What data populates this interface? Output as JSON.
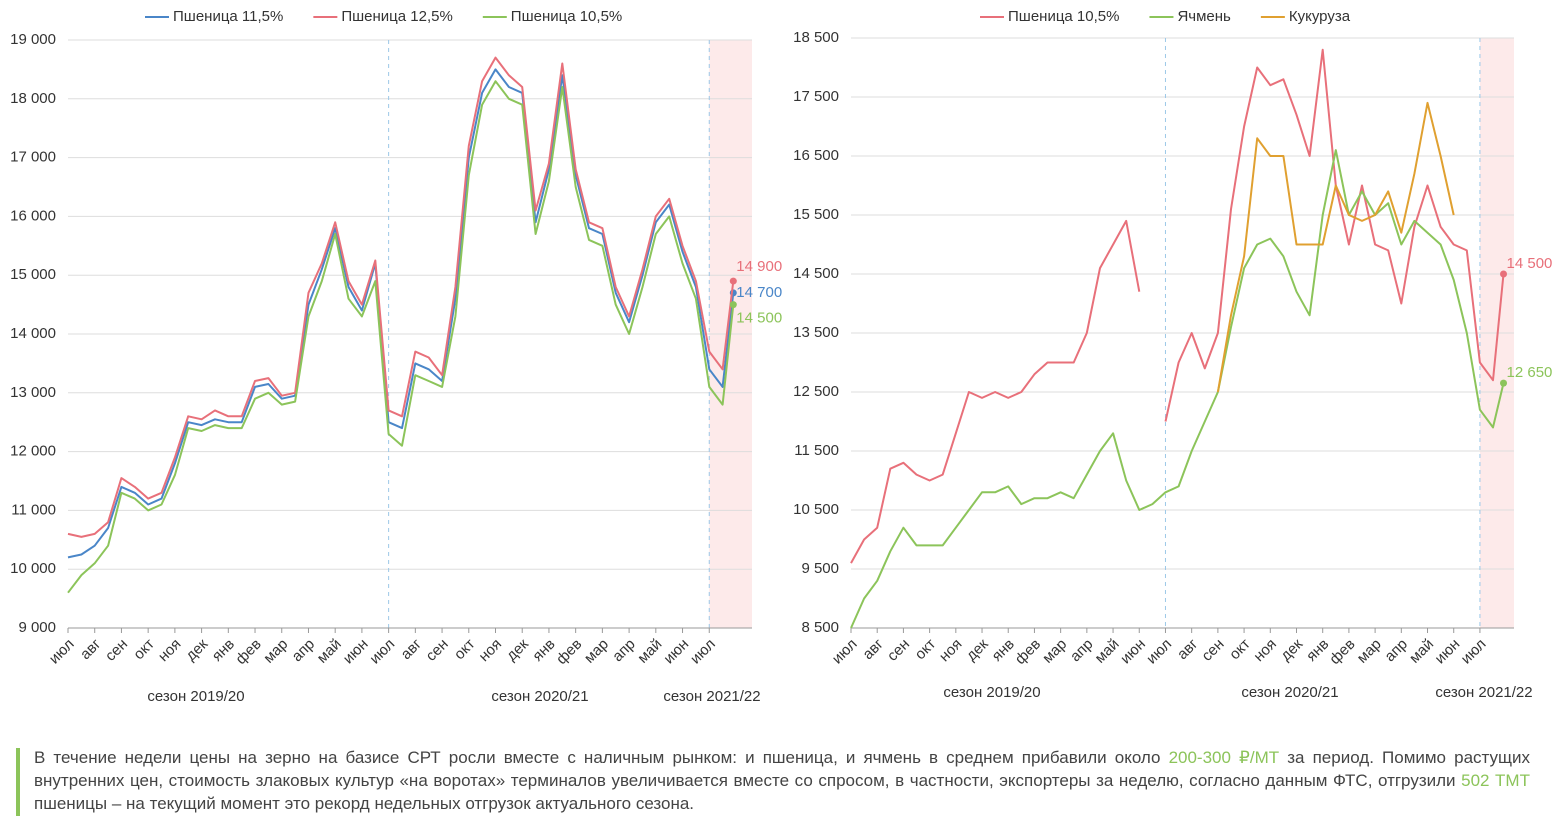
{
  "chart_data": [
    {
      "type": "line",
      "legend": "top",
      "x": [
        0,
        0.5,
        1,
        1.5,
        2,
        2.5,
        3,
        3.5,
        4,
        4.5,
        5,
        5.5,
        6,
        6.5,
        7,
        7.5,
        8,
        8.5,
        9,
        9.5,
        10,
        10.5,
        11,
        11.5,
        12,
        12.5,
        13,
        13.5,
        14,
        14.5,
        15,
        15.5,
        16,
        16.5,
        17,
        17.5,
        18,
        18.5,
        19,
        19.5,
        20,
        20.5,
        21,
        21.5,
        22,
        22.5,
        23,
        23.5,
        24,
        24.5,
        24.9
      ],
      "series": [
        {
          "name": "Пшеница 11,5%",
          "color": "#4a86c8",
          "end_label": "14 700",
          "values": [
            10200,
            10250,
            10400,
            10700,
            11400,
            11300,
            11100,
            11200,
            11800,
            12500,
            12450,
            12550,
            12500,
            12500,
            13100,
            13150,
            12900,
            12950,
            14500,
            15100,
            15800,
            14800,
            14400,
            15200,
            12500,
            12400,
            13500,
            13400,
            13200,
            14600,
            17000,
            18100,
            18500,
            18200,
            18100,
            15900,
            16800,
            18400,
            16700,
            15800,
            15700,
            14700,
            14200,
            15000,
            15900,
            16200,
            15400,
            14800,
            13400,
            13100,
            14700
          ]
        },
        {
          "name": "Пшеница 12,5%",
          "color": "#e8707a",
          "end_label": "14 900",
          "values": [
            10600,
            10550,
            10600,
            10800,
            11550,
            11400,
            11200,
            11300,
            11900,
            12600,
            12550,
            12700,
            12600,
            12600,
            13200,
            13250,
            12950,
            13000,
            14700,
            15200,
            15900,
            14900,
            14500,
            15250,
            12700,
            12600,
            13700,
            13600,
            13300,
            14800,
            17200,
            18300,
            18700,
            18400,
            18200,
            16100,
            16900,
            18600,
            16800,
            15900,
            15800,
            14800,
            14300,
            15100,
            16000,
            16300,
            15500,
            14900,
            13700,
            13400,
            14900
          ]
        },
        {
          "name": "Пшеница 10,5%",
          "color": "#8cc45a",
          "end_label": "14 500",
          "values": [
            9600,
            9900,
            10100,
            10400,
            11300,
            11200,
            11000,
            11100,
            11600,
            12400,
            12350,
            12450,
            12400,
            12400,
            12900,
            13000,
            12800,
            12850,
            14300,
            14900,
            15700,
            14600,
            14300,
            14900,
            12300,
            12100,
            13300,
            13200,
            13100,
            14300,
            16700,
            17900,
            18300,
            18000,
            17900,
            15700,
            16600,
            18200,
            16500,
            15600,
            15500,
            14500,
            14000,
            14800,
            15700,
            16000,
            15200,
            14600,
            13100,
            12800,
            14500
          ]
        }
      ],
      "xlim": [
        0,
        25.6
      ],
      "xticks": [
        {
          "value": 0,
          "label": "июл"
        },
        {
          "value": 1,
          "label": "авг"
        },
        {
          "value": 2,
          "label": "сен"
        },
        {
          "value": 3,
          "label": "окт"
        },
        {
          "value": 4,
          "label": "ноя"
        },
        {
          "value": 5,
          "label": "дек"
        },
        {
          "value": 6,
          "label": "янв"
        },
        {
          "value": 7,
          "label": "фев"
        },
        {
          "value": 8,
          "label": "мар"
        },
        {
          "value": 9,
          "label": "апр"
        },
        {
          "value": 10,
          "label": "май"
        },
        {
          "value": 11,
          "label": "июн"
        },
        {
          "value": 12,
          "label": "июл"
        },
        {
          "value": 13,
          "label": "авг"
        },
        {
          "value": 14,
          "label": "сен"
        },
        {
          "value": 15,
          "label": "окт"
        },
        {
          "value": 16,
          "label": "ноя"
        },
        {
          "value": 17,
          "label": "дек"
        },
        {
          "value": 18,
          "label": "янв"
        },
        {
          "value": 19,
          "label": "фев"
        },
        {
          "value": 20,
          "label": "мар"
        },
        {
          "value": 21,
          "label": "апр"
        },
        {
          "value": 22,
          "label": "май"
        },
        {
          "value": 23,
          "label": "июн"
        },
        {
          "value": 24,
          "label": "июл"
        }
      ],
      "ylim": [
        9000,
        19000
      ],
      "yticks": [
        {
          "value": 9000,
          "label": "9 000"
        },
        {
          "value": 10000,
          "label": "10 000"
        },
        {
          "value": 11000,
          "label": "11 000"
        },
        {
          "value": 12000,
          "label": "12 000"
        },
        {
          "value": 13000,
          "label": "13 000"
        },
        {
          "value": 14000,
          "label": "14 000"
        },
        {
          "value": 15000,
          "label": "15 000"
        },
        {
          "value": 16000,
          "label": "16 000"
        },
        {
          "value": 17000,
          "label": "17 000"
        },
        {
          "value": 18000,
          "label": "18 000"
        },
        {
          "value": 19000,
          "label": "19 000"
        }
      ],
      "grid": true,
      "shaded_xrange": [
        24,
        25.6
      ],
      "season_labels": [
        "сезон 2019/20",
        "сезон 2020/21",
        "сезон 2021/22"
      ]
    },
    {
      "type": "line",
      "legend": "top",
      "x": [
        0,
        0.5,
        1,
        1.5,
        2,
        2.5,
        3,
        3.5,
        4,
        4.5,
        5,
        5.5,
        6,
        6.5,
        7,
        7.5,
        8,
        8.5,
        9,
        9.5,
        10,
        10.5,
        11,
        11.5,
        12,
        12.5,
        13,
        13.5,
        14,
        14.5,
        15,
        15.5,
        16,
        16.5,
        17,
        17.5,
        18,
        18.5,
        19,
        19.5,
        20,
        20.5,
        21,
        21.5,
        22,
        22.5,
        23,
        23.5,
        24,
        24.5,
        24.9
      ],
      "series": [
        {
          "name": "Пшеница 10,5%",
          "color": "#e8707a",
          "end_label": "14 500",
          "values": [
            9600,
            10000,
            10200,
            11200,
            11300,
            11100,
            11000,
            11100,
            11800,
            12500,
            12400,
            12500,
            12400,
            12500,
            12800,
            13000,
            13000,
            13000,
            13500,
            14600,
            15000,
            15400,
            14200,
            null,
            12000,
            13000,
            13500,
            12900,
            13500,
            15600,
            17000,
            18000,
            17700,
            17800,
            17200,
            16500,
            18300,
            16000,
            15000,
            16000,
            15000,
            14900,
            14000,
            15300,
            16000,
            15300,
            15000,
            14900,
            13000,
            12700,
            14500
          ]
        },
        {
          "name": "Ячмень",
          "color": "#8cc45a",
          "end_label": "12 650",
          "values": [
            8500,
            9000,
            9300,
            9800,
            10200,
            9900,
            9900,
            9900,
            10200,
            10500,
            10800,
            10800,
            10900,
            10600,
            10700,
            10700,
            10800,
            10700,
            11100,
            11500,
            11800,
            11000,
            10500,
            10600,
            10800,
            10900,
            11500,
            12000,
            12500,
            13600,
            14600,
            15000,
            15100,
            14800,
            14200,
            13800,
            15500,
            16600,
            15500,
            15900,
            15500,
            15700,
            15000,
            15400,
            15200,
            15000,
            14400,
            13500,
            12200,
            11900,
            12650
          ]
        },
        {
          "name": "Кукуруза",
          "color": "#e0a030",
          "values": [
            null,
            null,
            null,
            null,
            null,
            null,
            null,
            null,
            null,
            null,
            null,
            null,
            null,
            null,
            null,
            null,
            null,
            null,
            null,
            null,
            null,
            null,
            null,
            null,
            null,
            null,
            null,
            null,
            12500,
            13800,
            14800,
            16800,
            16500,
            16500,
            15000,
            15000,
            15000,
            16000,
            15500,
            15400,
            15500,
            15900,
            15200,
            16200,
            17400,
            16500,
            15500,
            null,
            null,
            null,
            null
          ]
        }
      ],
      "xlim": [
        0,
        25.3
      ],
      "xticks": [
        {
          "value": 0,
          "label": "июл"
        },
        {
          "value": 1,
          "label": "авг"
        },
        {
          "value": 2,
          "label": "сен"
        },
        {
          "value": 3,
          "label": "окт"
        },
        {
          "value": 4,
          "label": "ноя"
        },
        {
          "value": 5,
          "label": "дек"
        },
        {
          "value": 6,
          "label": "янв"
        },
        {
          "value": 7,
          "label": "фев"
        },
        {
          "value": 8,
          "label": "мар"
        },
        {
          "value": 9,
          "label": "апр"
        },
        {
          "value": 10,
          "label": "май"
        },
        {
          "value": 11,
          "label": "июн"
        },
        {
          "value": 12,
          "label": "июл"
        },
        {
          "value": 13,
          "label": "авг"
        },
        {
          "value": 14,
          "label": "сен"
        },
        {
          "value": 15,
          "label": "окт"
        },
        {
          "value": 16,
          "label": "ноя"
        },
        {
          "value": 17,
          "label": "дек"
        },
        {
          "value": 18,
          "label": "янв"
        },
        {
          "value": 19,
          "label": "фев"
        },
        {
          "value": 20,
          "label": "мар"
        },
        {
          "value": 21,
          "label": "апр"
        },
        {
          "value": 22,
          "label": "май"
        },
        {
          "value": 23,
          "label": "июн"
        },
        {
          "value": 24,
          "label": "июл"
        }
      ],
      "ylim": [
        8500,
        18500
      ],
      "yticks": [
        {
          "value": 8500,
          "label": "8 500"
        },
        {
          "value": 9500,
          "label": "9 500"
        },
        {
          "value": 10500,
          "label": "10 500"
        },
        {
          "value": 11500,
          "label": "11 500"
        },
        {
          "value": 12500,
          "label": "12 500"
        },
        {
          "value": 13500,
          "label": "13 500"
        },
        {
          "value": 14500,
          "label": "14 500"
        },
        {
          "value": 15500,
          "label": "15 500"
        },
        {
          "value": 16500,
          "label": "16 500"
        },
        {
          "value": 17500,
          "label": "17 500"
        },
        {
          "value": 18500,
          "label": "18 500"
        }
      ],
      "grid": true,
      "shaded_xrange": [
        24,
        25.3
      ],
      "season_labels": [
        "сезон 2019/20",
        "сезон 2020/21",
        "сезон 2021/22"
      ]
    }
  ],
  "note": {
    "accent_color": "#8cc45a",
    "parts": [
      {
        "text": "В течение недели цены на зерно на базисе СРТ росли вместе с наличным рынком: и пшеница, и ячмень в среднем прибавили около "
      },
      {
        "text": "200-300 ₽/МТ",
        "highlight": true
      },
      {
        "text": " за период. Помимо растущих внутренних цен, стоимость злаковых культур «на воротах» терминалов увеличивается вместе со спросом, в частности, экспортеры за неделю, согласно данным ФТС, отгрузили "
      },
      {
        "text": "502 ТМТ",
        "highlight": true
      },
      {
        "text": " пшеницы – на текущий момент это рекорд недельных отгрузок актуального сезона."
      }
    ]
  }
}
